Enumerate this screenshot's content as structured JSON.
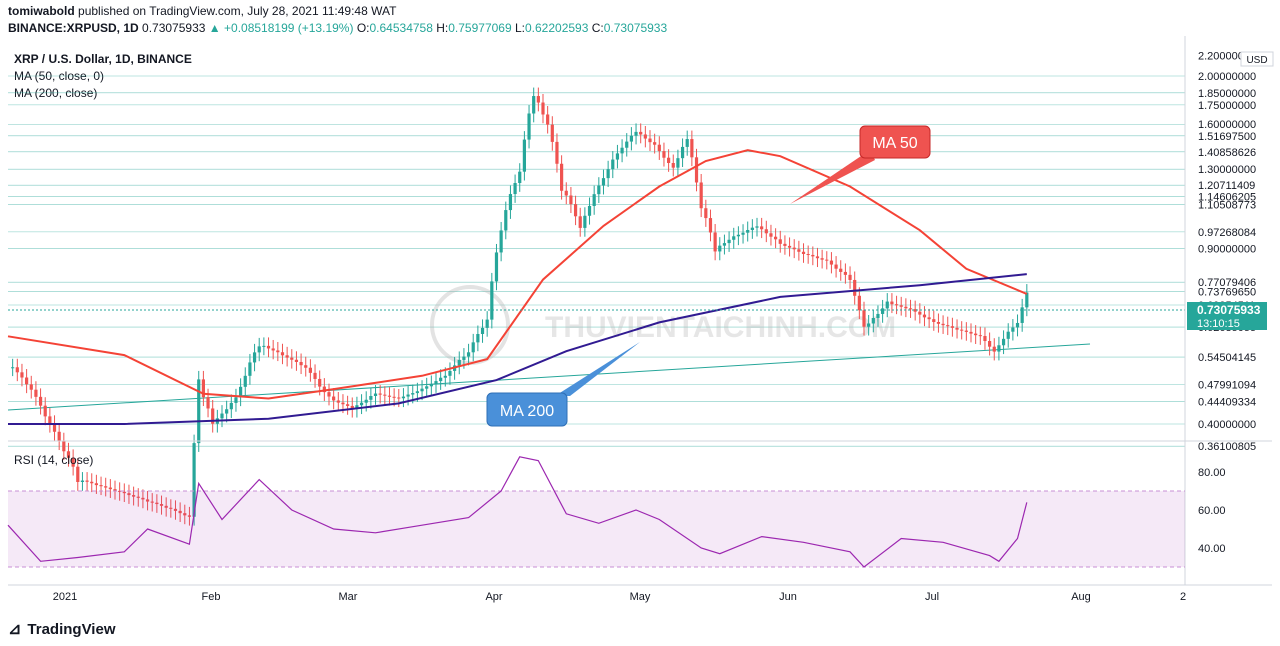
{
  "header": {
    "publisher": "tomiwabold",
    "published_text": "published on TradingView.com, July 28, 2021 11:49:48 WAT",
    "symbol": "BINANCE:XRPUSD, 1D",
    "last": "0.73075933",
    "change": "+0.08518199 (+13.19%)",
    "o_label": "O:",
    "o": "0.64534758",
    "h_label": "H:",
    "h": "0.75977069",
    "l_label": "L:",
    "l": "0.62202593",
    "c_label": "C:",
    "c": "0.73075933"
  },
  "legend": {
    "title": "XRP / U.S. Dollar, 1D, BINANCE",
    "ma50": "MA (50, close, 0)",
    "ma200": "MA (200, close)"
  },
  "callouts": {
    "ma50": "MA 50",
    "ma200": "MA 200"
  },
  "watermark": "THUVIENTAICHINH.COM",
  "price_axis": {
    "currency": "USD",
    "labels": [
      "2.20000000",
      "2.00000000",
      "1.85000000",
      "1.75000000",
      "1.60000000",
      "1.51697500",
      "1.40858626",
      "1.30000000",
      "1.20711409",
      "1.14606205",
      "1.10508773",
      "0.97268084",
      "0.90000000",
      "0.77079406",
      "0.73769650",
      "0.69354511",
      "0.62635055",
      "0.54504145",
      "0.47991094",
      "0.44409334",
      "0.40000000",
      "0.36100805"
    ],
    "current_price": "0.73075933",
    "countdown": "13:10:15"
  },
  "rsi": {
    "label": "RSI (14, close)",
    "ticks": [
      "80.00",
      "60.00",
      "40.00"
    ]
  },
  "time_axis": [
    "2021",
    "Feb",
    "Mar",
    "Apr",
    "May",
    "Jun",
    "Jul",
    "Aug",
    "2"
  ],
  "footer": {
    "brand": "TradingView"
  },
  "colors": {
    "up": "#26a69a",
    "down": "#ef5350",
    "ma50": "#f44336",
    "ma200": "#311b92",
    "rsi": "#9c27b0",
    "callout_blue": "#4a90d9",
    "callout_red": "#ef5350"
  },
  "chart_data": {
    "type": "candlestick",
    "title": "XRP / U.S. Dollar, 1D, BINANCE",
    "x_range": [
      "2020-12-21",
      "2021-07-28"
    ],
    "ylim": [
      0.36,
      2.2
    ],
    "close_path": [
      [
        "2020-12-22",
        0.52
      ],
      [
        "2020-12-26",
        0.47
      ],
      [
        "2020-12-30",
        0.4
      ],
      [
        "2021-01-05",
        0.31
      ],
      [
        "2021-01-10",
        0.3
      ],
      [
        "2021-01-15",
        0.29
      ],
      [
        "2021-01-20",
        0.28
      ],
      [
        "2021-01-25",
        0.27
      ],
      [
        "2021-01-29",
        0.26
      ],
      [
        "2021-01-31",
        0.48
      ],
      [
        "2021-02-03",
        0.4
      ],
      [
        "2021-02-08",
        0.45
      ],
      [
        "2021-02-13",
        0.58
      ],
      [
        "2021-02-18",
        0.55
      ],
      [
        "2021-02-23",
        0.52
      ],
      [
        "2021-02-28",
        0.45
      ],
      [
        "2021-03-05",
        0.43
      ],
      [
        "2021-03-10",
        0.46
      ],
      [
        "2021-03-15",
        0.45
      ],
      [
        "2021-03-20",
        0.47
      ],
      [
        "2021-03-25",
        0.5
      ],
      [
        "2021-03-30",
        0.56
      ],
      [
        "2021-04-03",
        0.65
      ],
      [
        "2021-04-06",
        1.0
      ],
      [
        "2021-04-10",
        1.3
      ],
      [
        "2021-04-13",
        1.85
      ],
      [
        "2021-04-16",
        1.6
      ],
      [
        "2021-04-19",
        1.2
      ],
      [
        "2021-04-23",
        1.0
      ],
      [
        "2021-04-27",
        1.2
      ],
      [
        "2021-05-01",
        1.4
      ],
      [
        "2021-05-05",
        1.55
      ],
      [
        "2021-05-09",
        1.45
      ],
      [
        "2021-05-13",
        1.3
      ],
      [
        "2021-05-16",
        1.5
      ],
      [
        "2021-05-19",
        1.1
      ],
      [
        "2021-05-22",
        0.9
      ],
      [
        "2021-05-26",
        0.95
      ],
      [
        "2021-05-31",
        1.0
      ],
      [
        "2021-06-05",
        0.92
      ],
      [
        "2021-06-10",
        0.88
      ],
      [
        "2021-06-15",
        0.85
      ],
      [
        "2021-06-20",
        0.78
      ],
      [
        "2021-06-23",
        0.62
      ],
      [
        "2021-06-28",
        0.7
      ],
      [
        "2021-07-03",
        0.68
      ],
      [
        "2021-07-08",
        0.64
      ],
      [
        "2021-07-13",
        0.62
      ],
      [
        "2021-07-18",
        0.6
      ],
      [
        "2021-07-21",
        0.56
      ],
      [
        "2021-07-24",
        0.61
      ],
      [
        "2021-07-26",
        0.64
      ],
      [
        "2021-07-28",
        0.73
      ]
    ],
    "ma50": [
      [
        "2020-12-21",
        0.6
      ],
      [
        "2021-01-15",
        0.55
      ],
      [
        "2021-02-01",
        0.46
      ],
      [
        "2021-02-15",
        0.45
      ],
      [
        "2021-03-01",
        0.47
      ],
      [
        "2021-03-20",
        0.5
      ],
      [
        "2021-04-03",
        0.54
      ],
      [
        "2021-04-15",
        0.78
      ],
      [
        "2021-04-28",
        1.0
      ],
      [
        "2021-05-10",
        1.2
      ],
      [
        "2021-05-20",
        1.35
      ],
      [
        "2021-05-29",
        1.42
      ],
      [
        "2021-06-05",
        1.38
      ],
      [
        "2021-06-20",
        1.2
      ],
      [
        "2021-07-05",
        0.98
      ],
      [
        "2021-07-15",
        0.82
      ],
      [
        "2021-07-28",
        0.73
      ]
    ],
    "ma200": [
      [
        "2020-12-21",
        0.4
      ],
      [
        "2021-01-15",
        0.4
      ],
      [
        "2021-02-15",
        0.41
      ],
      [
        "2021-03-15",
        0.44
      ],
      [
        "2021-04-05",
        0.49
      ],
      [
        "2021-04-20",
        0.56
      ],
      [
        "2021-05-10",
        0.64
      ],
      [
        "2021-06-05",
        0.72
      ],
      [
        "2021-07-05",
        0.76
      ],
      [
        "2021-07-28",
        0.8
      ]
    ],
    "rsi": [
      [
        "2020-12-21",
        52
      ],
      [
        "2020-12-28",
        33
      ],
      [
        "2021-01-05",
        35
      ],
      [
        "2021-01-15",
        38
      ],
      [
        "2021-01-20",
        50
      ],
      [
        "2021-01-29",
        42
      ],
      [
        "2021-01-31",
        74
      ],
      [
        "2021-02-05",
        55
      ],
      [
        "2021-02-13",
        76
      ],
      [
        "2021-02-20",
        60
      ],
      [
        "2021-03-01",
        50
      ],
      [
        "2021-03-10",
        48
      ],
      [
        "2021-03-20",
        52
      ],
      [
        "2021-03-30",
        56
      ],
      [
        "2021-04-06",
        70
      ],
      [
        "2021-04-10",
        88
      ],
      [
        "2021-04-14",
        86
      ],
      [
        "2021-04-20",
        58
      ],
      [
        "2021-04-27",
        53
      ],
      [
        "2021-05-05",
        60
      ],
      [
        "2021-05-10",
        55
      ],
      [
        "2021-05-19",
        40
      ],
      [
        "2021-05-23",
        37
      ],
      [
        "2021-06-01",
        46
      ],
      [
        "2021-06-10",
        43
      ],
      [
        "2021-06-20",
        38
      ],
      [
        "2021-06-23",
        30
      ],
      [
        "2021-07-01",
        45
      ],
      [
        "2021-07-10",
        43
      ],
      [
        "2021-07-20",
        36
      ],
      [
        "2021-07-22",
        33
      ],
      [
        "2021-07-26",
        45
      ],
      [
        "2021-07-28",
        64
      ]
    ],
    "rsi_bands": [
      70,
      30
    ]
  }
}
